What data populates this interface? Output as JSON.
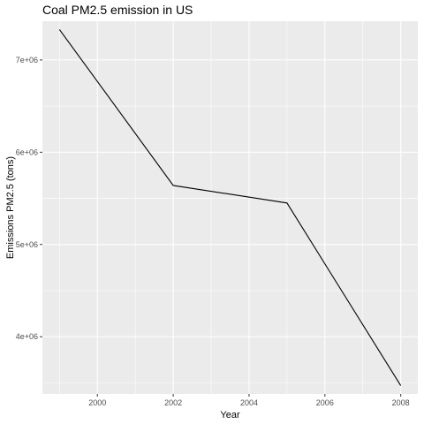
{
  "chart_data": {
    "type": "line",
    "title": "Coal PM2.5 emission in US",
    "xlabel": "Year",
    "ylabel": "Emissions PM2.5 (tons)",
    "x": [
      1999,
      2002,
      2005,
      2008
    ],
    "series": [
      {
        "values": [
          7330000,
          5640000,
          5450000,
          3470000
        ]
      }
    ],
    "xlim": [
      1998.55,
      2008.45
    ],
    "ylim": [
      3380000,
      7420000
    ],
    "x_ticks": [
      2000,
      2002,
      2004,
      2006,
      2008
    ],
    "x_tick_labels": [
      "2000",
      "2002",
      "2004",
      "2006",
      "2008"
    ],
    "y_ticks": [
      4000000,
      5000000,
      6000000,
      7000000
    ],
    "y_tick_labels": [
      "4e+06",
      "5e+06",
      "6e+06",
      "7e+06"
    ],
    "grid": true,
    "panel_color": "#ebebeb",
    "grid_color": "#ffffff",
    "line_color": "#000000"
  }
}
